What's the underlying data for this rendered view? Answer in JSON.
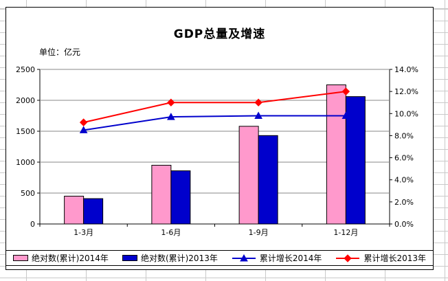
{
  "chart": {
    "title": "GDP总量及增速",
    "unit_label": "单位：亿元"
  },
  "chart_data": {
    "type": "bar+line combo",
    "categories": [
      "1-3月",
      "1-6月",
      "1-9月",
      "1-12月"
    ],
    "bar_series": [
      {
        "name": "绝对数(累计)2014年",
        "color": "#FF99CC",
        "axis": "left",
        "values": [
          450,
          950,
          1580,
          2250
        ]
      },
      {
        "name": "绝对数(累计)2013年",
        "color": "#0000CC",
        "axis": "left",
        "values": [
          410,
          860,
          1430,
          2060
        ]
      }
    ],
    "line_series": [
      {
        "name": "累计增长2014年",
        "color": "#0000CC",
        "marker": "triangle",
        "axis": "right",
        "values": [
          8.5,
          9.7,
          9.8,
          9.8
        ]
      },
      {
        "name": "累计增长2013年",
        "color": "#FF0000",
        "marker": "diamond",
        "axis": "right",
        "values": [
          9.2,
          11.0,
          11.0,
          12.0
        ]
      }
    ],
    "y_left": {
      "min": 0,
      "max": 2500,
      "step": 500,
      "ticks": [
        "0",
        "500",
        "1000",
        "1500",
        "2000",
        "2500"
      ]
    },
    "y_right": {
      "min": 0,
      "max": 14,
      "step": 2,
      "ticks": [
        "0.0%",
        "2.0%",
        "4.0%",
        "6.0%",
        "8.0%",
        "10.0%",
        "12.0%",
        "14.0%"
      ]
    },
    "grid": "horizontal",
    "legend_position": "bottom"
  }
}
